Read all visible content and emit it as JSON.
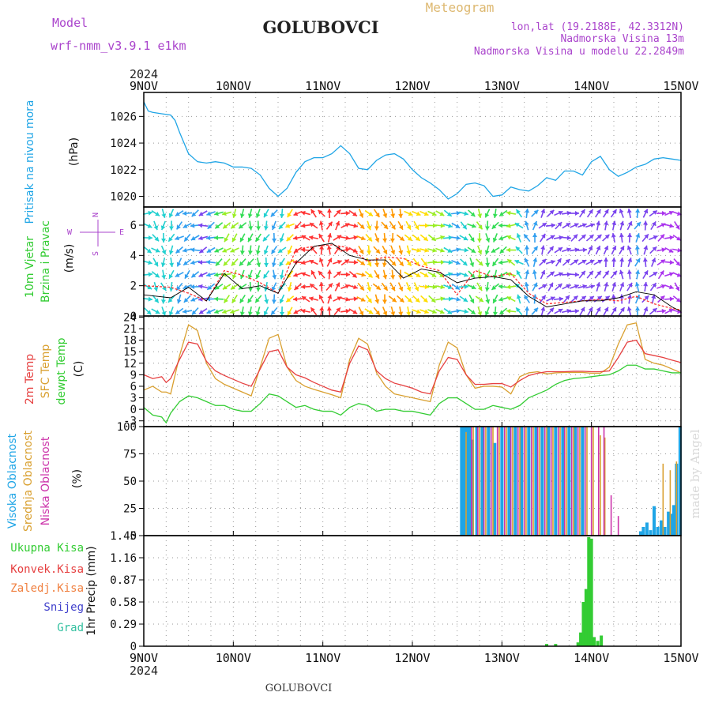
{
  "header": {
    "model_label": "Model",
    "model_name": "wrf-nmm_v3.9.1  e1km",
    "station_title": "GOLUBOVCI",
    "meteogram_label": "Meteogram",
    "lonlat": "lon,lat (19.2188E, 42.3312N)",
    "altitude": "Nadmorska Visina 13m",
    "model_altitude": "Nadmorska Visina u modelu 22.2849m",
    "footer_title": "GOLUBOVCI",
    "watermark": "made by Angel"
  },
  "time_axis": {
    "year": "2024",
    "labels": [
      "9NOV",
      "10NOV",
      "11NOV",
      "12NOV",
      "13NOV",
      "14NOV",
      "15NOV"
    ]
  },
  "colors": {
    "pressure": "#1fa5e6",
    "t2m": "#e64040",
    "tsfc": "#d9a030",
    "dewpoint": "#33cc33",
    "high_cloud": "#1fa5e6",
    "mid_cloud": "#d9a030",
    "low_cloud": "#cc33aa",
    "total_precip": "#33cc33",
    "conv_precip": "#e64040",
    "frozen_precip": "#f08040",
    "snow": "#4040cc",
    "graupel": "#33c0a0",
    "wind_compass": "#aa44cc"
  },
  "chart_data": [
    {
      "type": "line",
      "id": "pressure",
      "ylabel": "Pritisak na nivou mora",
      "unit": "(hPa)",
      "yticks": [
        "1026",
        "1024",
        "1022",
        "1020"
      ],
      "ylim": [
        1019.2,
        1027.8
      ],
      "x_days": [
        0,
        0.05,
        0.1,
        0.2,
        0.3,
        0.35,
        0.4,
        0.5,
        0.6,
        0.7,
        0.8,
        0.9,
        1.0,
        1.1,
        1.2,
        1.3,
        1.4,
        1.5,
        1.6,
        1.7,
        1.8,
        1.9,
        2.0,
        2.1,
        2.2,
        2.3,
        2.4,
        2.5,
        2.6,
        2.7,
        2.8,
        2.9,
        3.0,
        3.1,
        3.2,
        3.3,
        3.4,
        3.5,
        3.6,
        3.7,
        3.8,
        3.9,
        4.0,
        4.1,
        4.2,
        4.3,
        4.4,
        4.5,
        4.6,
        4.7,
        4.8,
        4.9,
        5.0,
        5.1,
        5.2,
        5.3,
        5.4,
        5.5,
        5.6,
        5.7,
        5.8,
        5.9,
        6.0
      ],
      "values": [
        1027.1,
        1026.4,
        1026.3,
        1026.2,
        1026.1,
        1025.7,
        1024.8,
        1023.2,
        1022.6,
        1022.5,
        1022.6,
        1022.5,
        1022.2,
        1022.2,
        1022.1,
        1021.6,
        1020.6,
        1020.0,
        1020.6,
        1021.8,
        1022.6,
        1022.9,
        1022.9,
        1023.2,
        1023.8,
        1023.2,
        1022.1,
        1022.0,
        1022.7,
        1023.1,
        1023.2,
        1022.8,
        1022.0,
        1021.4,
        1021.0,
        1020.5,
        1019.8,
        1020.2,
        1020.9,
        1021.0,
        1020.8,
        1020.0,
        1020.1,
        1020.7,
        1020.5,
        1020.4,
        1020.8,
        1021.4,
        1021.2,
        1021.9,
        1021.9,
        1021.6,
        1022.6,
        1023.0,
        1022.0,
        1021.5,
        1021.8,
        1022.2,
        1022.4,
        1022.8,
        1022.9,
        1022.8,
        1022.7
      ],
      "series": []
    },
    {
      "type": "scatter",
      "id": "wind",
      "ylabel": "10m Vjetar",
      "ylabel2": "Brzina i Pravac",
      "unit": "(m/s)",
      "compass": [
        "N",
        "E",
        "S",
        "W"
      ],
      "yticks": [
        "6",
        "4",
        "2",
        "0"
      ],
      "ylim": [
        0,
        7.2
      ],
      "x_days": [
        0,
        0.3,
        0.5,
        0.7,
        0.9,
        1.1,
        1.3,
        1.5,
        1.7,
        1.9,
        2.1,
        2.3,
        2.5,
        2.7,
        2.9,
        3.1,
        3.3,
        3.5,
        3.7,
        3.9,
        4.1,
        4.3,
        4.5,
        4.7,
        4.9,
        5.1,
        5.3,
        5.5,
        5.7,
        5.9,
        6.0
      ],
      "speed": [
        2.0,
        1.9,
        1.5,
        1.0,
        3.0,
        2.7,
        2.2,
        1.5,
        4.4,
        4.6,
        4.7,
        4.5,
        3.6,
        3.9,
        3.8,
        3.3,
        3.0,
        1.4,
        3.0,
        2.6,
        2.8,
        1.5,
        0.8,
        0.9,
        1.0,
        1.1,
        1.0,
        1.3,
        0.8,
        0.5,
        0.4
      ],
      "gust": [
        1.4,
        1.2,
        1.9,
        1.0,
        2.8,
        1.8,
        2.0,
        1.5,
        3.5,
        4.6,
        4.8,
        4.0,
        3.7,
        3.7,
        2.5,
        3.1,
        2.9,
        2.2,
        2.5,
        2.6,
        2.4,
        1.3,
        0.6,
        0.8,
        1.0,
        1.0,
        1.2,
        1.6,
        1.4,
        0.6,
        0.3
      ],
      "series": []
    },
    {
      "type": "line",
      "id": "temperature",
      "ylabel_t2m": "2m Temp",
      "ylabel_tsfc": "SFC Temp",
      "ylabel_dew": "dewpt Temp",
      "unit": "(C)",
      "yticks": [
        "24",
        "21",
        "18",
        "15",
        "12",
        "9",
        "6",
        "3",
        "0",
        "-3"
      ],
      "ylim": [
        -4.5,
        24.3
      ],
      "x_days": [
        0,
        0.1,
        0.2,
        0.25,
        0.3,
        0.4,
        0.5,
        0.6,
        0.7,
        0.8,
        0.9,
        1.0,
        1.1,
        1.2,
        1.3,
        1.4,
        1.5,
        1.6,
        1.7,
        1.8,
        1.9,
        2.0,
        2.1,
        2.2,
        2.3,
        2.4,
        2.5,
        2.6,
        2.7,
        2.8,
        2.9,
        3.0,
        3.1,
        3.2,
        3.3,
        3.4,
        3.5,
        3.6,
        3.7,
        3.8,
        3.9,
        4.0,
        4.1,
        4.2,
        4.3,
        4.4,
        4.5,
        4.6,
        4.7,
        4.8,
        4.9,
        5.0,
        5.1,
        5.2,
        5.3,
        5.4,
        5.5,
        5.6,
        5.7,
        5.8,
        5.9,
        6.0
      ],
      "series": [
        {
          "name": "2m Temp",
          "values": [
            9.0,
            8.0,
            8.5,
            7.0,
            8.0,
            13.0,
            17.5,
            17.0,
            12.5,
            10.0,
            8.8,
            7.8,
            6.8,
            6.0,
            10.5,
            15.0,
            15.5,
            11.0,
            9.0,
            8.2,
            7.0,
            6.0,
            5.0,
            4.5,
            12.0,
            16.5,
            15.5,
            10.0,
            8.0,
            6.8,
            6.2,
            5.5,
            4.5,
            4.0,
            10.0,
            13.5,
            13.0,
            9.0,
            6.5,
            6.5,
            6.7,
            6.7,
            5.8,
            7.5,
            8.8,
            9.4,
            9.8,
            9.8,
            9.8,
            9.9,
            9.9,
            9.8,
            9.8,
            10.0,
            13.5,
            17.5,
            18.0,
            14.5,
            14.0,
            13.5,
            12.8,
            12.2
          ]
        },
        {
          "name": "SFC Temp",
          "values": [
            5.0,
            6.0,
            4.5,
            4.5,
            4.0,
            14.0,
            22.0,
            20.5,
            12.0,
            8.0,
            6.5,
            5.5,
            4.5,
            3.5,
            11.0,
            18.5,
            19.5,
            11.0,
            7.5,
            6.0,
            5.2,
            4.5,
            3.8,
            3.0,
            13.0,
            18.5,
            17.0,
            9.5,
            6.0,
            4.0,
            3.5,
            3.0,
            2.5,
            2.0,
            11.5,
            17.5,
            16.0,
            9.0,
            5.5,
            6.0,
            6.0,
            5.8,
            4.0,
            8.5,
            9.5,
            9.8,
            9.2,
            9.5,
            9.6,
            9.6,
            9.6,
            9.4,
            9.4,
            11.0,
            17.0,
            22.0,
            22.5,
            13.0,
            12.0,
            11.5,
            10.5,
            9.5
          ]
        },
        {
          "name": "dewpt Temp",
          "values": [
            0.5,
            -1.5,
            -2.0,
            -3.5,
            -1.0,
            2.0,
            3.5,
            3.0,
            2.0,
            1.0,
            1.0,
            0.0,
            -0.5,
            -0.5,
            1.5,
            4.0,
            3.5,
            2.0,
            0.5,
            1.0,
            0.0,
            -0.5,
            -0.5,
            -1.5,
            0.5,
            1.5,
            1.0,
            -0.5,
            0.0,
            0.0,
            -0.5,
            -0.5,
            -1.0,
            -1.5,
            1.5,
            3.0,
            3.0,
            1.5,
            0.0,
            0.0,
            1.0,
            0.5,
            0.0,
            1.0,
            3.0,
            4.0,
            5.0,
            6.5,
            7.5,
            8.0,
            8.2,
            8.5,
            8.8,
            9.0,
            10.0,
            11.5,
            11.5,
            10.5,
            10.5,
            10.0,
            9.5,
            9.5
          ]
        }
      ]
    },
    {
      "type": "bar",
      "id": "clouds",
      "ylabel_high": "Visoka Oblacnost",
      "ylabel_mid": "Srednja Oblacnost",
      "ylabel_low": "Niska Oblacnost",
      "unit": "(%)",
      "yticks": [
        "100",
        "75",
        "50",
        "25",
        "0"
      ],
      "ylim": [
        0,
        100
      ],
      "series": [
        {
          "name": "Visoka Oblacnost",
          "x_days": [
            3.55,
            3.58,
            3.61,
            3.64,
            3.67,
            3.72,
            3.78,
            3.85,
            3.92,
            4.0,
            4.08,
            4.15,
            4.22,
            4.3,
            4.38,
            4.45,
            4.52,
            4.6,
            4.68,
            4.75,
            4.82,
            4.9,
            4.98,
            5.05,
            5.1,
            5.15,
            5.55,
            5.58,
            5.62,
            5.66,
            5.7,
            5.74,
            5.78,
            5.82,
            5.86,
            5.89,
            5.92,
            5.95,
            5.99
          ],
          "values": [
            100,
            100,
            100,
            100,
            88,
            100,
            100,
            100,
            85,
            100,
            100,
            100,
            100,
            100,
            100,
            100,
            100,
            100,
            100,
            100,
            100,
            100,
            0,
            0,
            0,
            0,
            4,
            8,
            12,
            5,
            27,
            8,
            14,
            8,
            22,
            20,
            28,
            66,
            100
          ]
        },
        {
          "name": "Srednja Oblacnost",
          "x_days": [
            3.6,
            3.68,
            3.75,
            3.82,
            3.9,
            3.97,
            4.05,
            4.12,
            4.2,
            4.27,
            4.35,
            4.42,
            4.5,
            4.57,
            4.65,
            4.72,
            4.8,
            4.87,
            4.95,
            5.02,
            5.1,
            5.15,
            5.8,
            5.88,
            5.95
          ],
          "values": [
            95,
            100,
            100,
            100,
            100,
            100,
            100,
            100,
            100,
            100,
            100,
            100,
            100,
            100,
            100,
            100,
            100,
            100,
            100,
            100,
            92,
            90,
            66,
            60,
            68
          ]
        },
        {
          "name": "Niska Oblacnost",
          "x_days": [
            3.66,
            3.73,
            3.8,
            3.88,
            3.95,
            4.03,
            4.1,
            4.18,
            4.25,
            4.33,
            4.4,
            4.48,
            4.55,
            4.63,
            4.7,
            4.78,
            4.85,
            4.93,
            5.0,
            5.08,
            5.14,
            5.22,
            5.3
          ],
          "values": [
            100,
            100,
            100,
            100,
            100,
            100,
            100,
            100,
            100,
            100,
            100,
            100,
            100,
            100,
            100,
            100,
            100,
            100,
            100,
            100,
            100,
            37,
            18
          ]
        }
      ]
    },
    {
      "type": "bar",
      "id": "precip",
      "ylabel_total": "Ukupna Kisa",
      "ylabel_conv": "Konvek.Kisa",
      "ylabel_frozen": "Zaledj.Kisa",
      "ylabel_snow": "Snijeg",
      "ylabel_graupel": "Grad",
      "unit": "1hr Precip (mm)",
      "yticks": [
        "1.45",
        "1.16",
        "0.87",
        "0.58",
        "0.29",
        "0"
      ],
      "ylim": [
        0,
        1.45
      ],
      "series": [
        {
          "name": "Ukupna Kisa",
          "x_days": [
            4.5,
            4.6,
            4.85,
            4.88,
            4.91,
            4.94,
            4.97,
            5.0,
            5.03,
            5.07,
            5.11
          ],
          "values": [
            0.03,
            0.03,
            0.05,
            0.18,
            0.58,
            0.75,
            1.43,
            1.41,
            0.12,
            0.07,
            0.14
          ]
        }
      ]
    }
  ]
}
